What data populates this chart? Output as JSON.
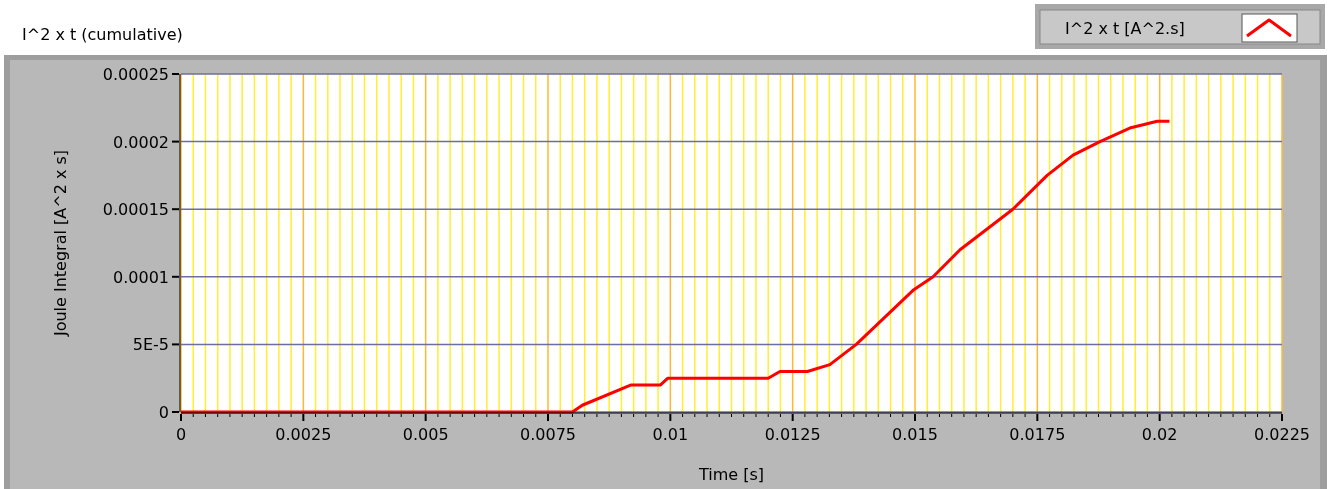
{
  "chart_data": {
    "type": "line",
    "title": "I^2 x t (cumulative)",
    "xlabel": "Time [s]",
    "ylabel": "Joule Integral [A^2 x s]",
    "xlim": [
      0,
      0.0225
    ],
    "xticks": [
      0,
      {
        "value": 0.00025,
        "label": null
      },
      {
        "value": 0.0005,
        "label": null
      },
      {
        "value": 0.00075,
        "label": null
      },
      {
        "value": 0.001,
        "label": null
      },
      {
        "value": 0.00125,
        "label": null
      },
      {
        "value": 0.0015,
        "label": null
      },
      {
        "value": 0.00175,
        "label": null
      },
      {
        "value": 0.002,
        "label": null
      },
      {
        "value": 0.00225,
        "label": null
      },
      0.0025,
      {
        "value": 0.00275,
        "label": null
      },
      {
        "value": 0.003,
        "label": null
      },
      {
        "value": 0.00325,
        "label": null
      },
      {
        "value": 0.0035,
        "label": null
      },
      {
        "value": 0.00375,
        "label": null
      },
      {
        "value": 0.004,
        "label": null
      },
      {
        "value": 0.00425,
        "label": null
      },
      {
        "value": 0.0045,
        "label": null
      },
      {
        "value": 0.00475,
        "label": null
      },
      0.005,
      {
        "value": 0.00525,
        "label": null
      },
      {
        "value": 0.0055,
        "label": null
      },
      {
        "value": 0.00575,
        "label": null
      },
      {
        "value": 0.006,
        "label": null
      },
      {
        "value": 0.00625,
        "label": null
      },
      {
        "value": 0.0065,
        "label": null
      },
      {
        "value": 0.00675,
        "label": null
      },
      {
        "value": 0.007,
        "label": null
      },
      {
        "value": 0.00725,
        "label": null
      },
      0.0075,
      {
        "value": 0.00775,
        "label": null
      },
      {
        "value": 0.008,
        "label": null
      },
      {
        "value": 0.00825,
        "label": null
      },
      {
        "value": 0.0085,
        "label": null
      },
      {
        "value": 0.00875,
        "label": null
      },
      {
        "value": 0.009,
        "label": null
      },
      {
        "value": 0.00925,
        "label": null
      },
      {
        "value": 0.0095,
        "label": null
      },
      {
        "value": 0.00975,
        "label": null
      },
      0.01,
      {
        "value": 0.01025,
        "label": null
      },
      {
        "value": 0.0105,
        "label": null
      },
      {
        "value": 0.01075,
        "label": null
      },
      {
        "value": 0.011,
        "label": null
      },
      {
        "value": 0.01125,
        "label": null
      },
      {
        "value": 0.0115,
        "label": null
      },
      {
        "value": 0.01175,
        "label": null
      },
      {
        "value": 0.012,
        "label": null
      },
      {
        "value": 0.01225,
        "label": null
      },
      0.0125,
      {
        "value": 0.01275,
        "label": null
      },
      {
        "value": 0.013,
        "label": null
      },
      {
        "value": 0.01325,
        "label": null
      },
      {
        "value": 0.0135,
        "label": null
      },
      {
        "value": 0.01375,
        "label": null
      },
      {
        "value": 0.014,
        "label": null
      },
      {
        "value": 0.01425,
        "label": null
      },
      {
        "value": 0.0145,
        "label": null
      },
      {
        "value": 0.01475,
        "label": null
      },
      0.015,
      {
        "value": 0.01525,
        "label": null
      },
      {
        "value": 0.0155,
        "label": null
      },
      {
        "value": 0.01575,
        "label": null
      },
      {
        "value": 0.016,
        "label": null
      },
      {
        "value": 0.01625,
        "label": null
      },
      {
        "value": 0.0165,
        "label": null
      },
      {
        "value": 0.01675,
        "label": null
      },
      {
        "value": 0.017,
        "label": null
      },
      {
        "value": 0.01725,
        "label": null
      },
      0.0175,
      {
        "value": 0.01775,
        "label": null
      },
      {
        "value": 0.018,
        "label": null
      },
      {
        "value": 0.01825,
        "label": null
      },
      {
        "value": 0.0185,
        "label": null
      },
      {
        "value": 0.01875,
        "label": null
      },
      {
        "value": 0.019,
        "label": null
      },
      {
        "value": 0.01925,
        "label": null
      },
      {
        "value": 0.0195,
        "label": null
      },
      {
        "value": 0.01975,
        "label": null
      },
      0.02,
      {
        "value": 0.02025,
        "label": null
      },
      {
        "value": 0.0205,
        "label": null
      },
      {
        "value": 0.02075,
        "label": null
      },
      {
        "value": 0.021,
        "label": null
      },
      {
        "value": 0.02125,
        "label": null
      },
      {
        "value": 0.0215,
        "label": null
      },
      {
        "value": 0.02175,
        "label": null
      },
      {
        "value": 0.022,
        "label": null
      },
      {
        "value": 0.02225,
        "label": null
      },
      0.0225
    ],
    "ylim": [
      0,
      0.00025
    ],
    "yticks": [
      0,
      {
        "value": 5e-05,
        "label": "5E-5"
      },
      0.0001,
      0.00015,
      0.0002,
      0.00025
    ],
    "grid": true,
    "legend": "top right",
    "marker": "none",
    "line_style": "solid",
    "series": [
      {
        "name": "I^2 x t [A^2.s]",
        "color": "#ff0000",
        "x": [
          0,
          0.008,
          0.0082,
          0.0092,
          0.0098,
          0.00995,
          0.012,
          0.01224,
          0.0128,
          0.01326,
          0.0138,
          0.01496,
          0.01537,
          0.01592,
          0.017,
          0.0177,
          0.01823,
          0.01878,
          0.01939,
          0.01995,
          0.0202
        ],
        "values": [
          0,
          0,
          5e-06,
          2e-05,
          2e-05,
          2.5e-05,
          2.5e-05,
          3e-05,
          3e-05,
          3.5e-05,
          5e-05,
          9e-05,
          0.0001,
          0.00012,
          0.00015,
          0.000175,
          0.00019,
          0.0002,
          0.00021,
          0.000215,
          0.000215
        ]
      }
    ]
  }
}
